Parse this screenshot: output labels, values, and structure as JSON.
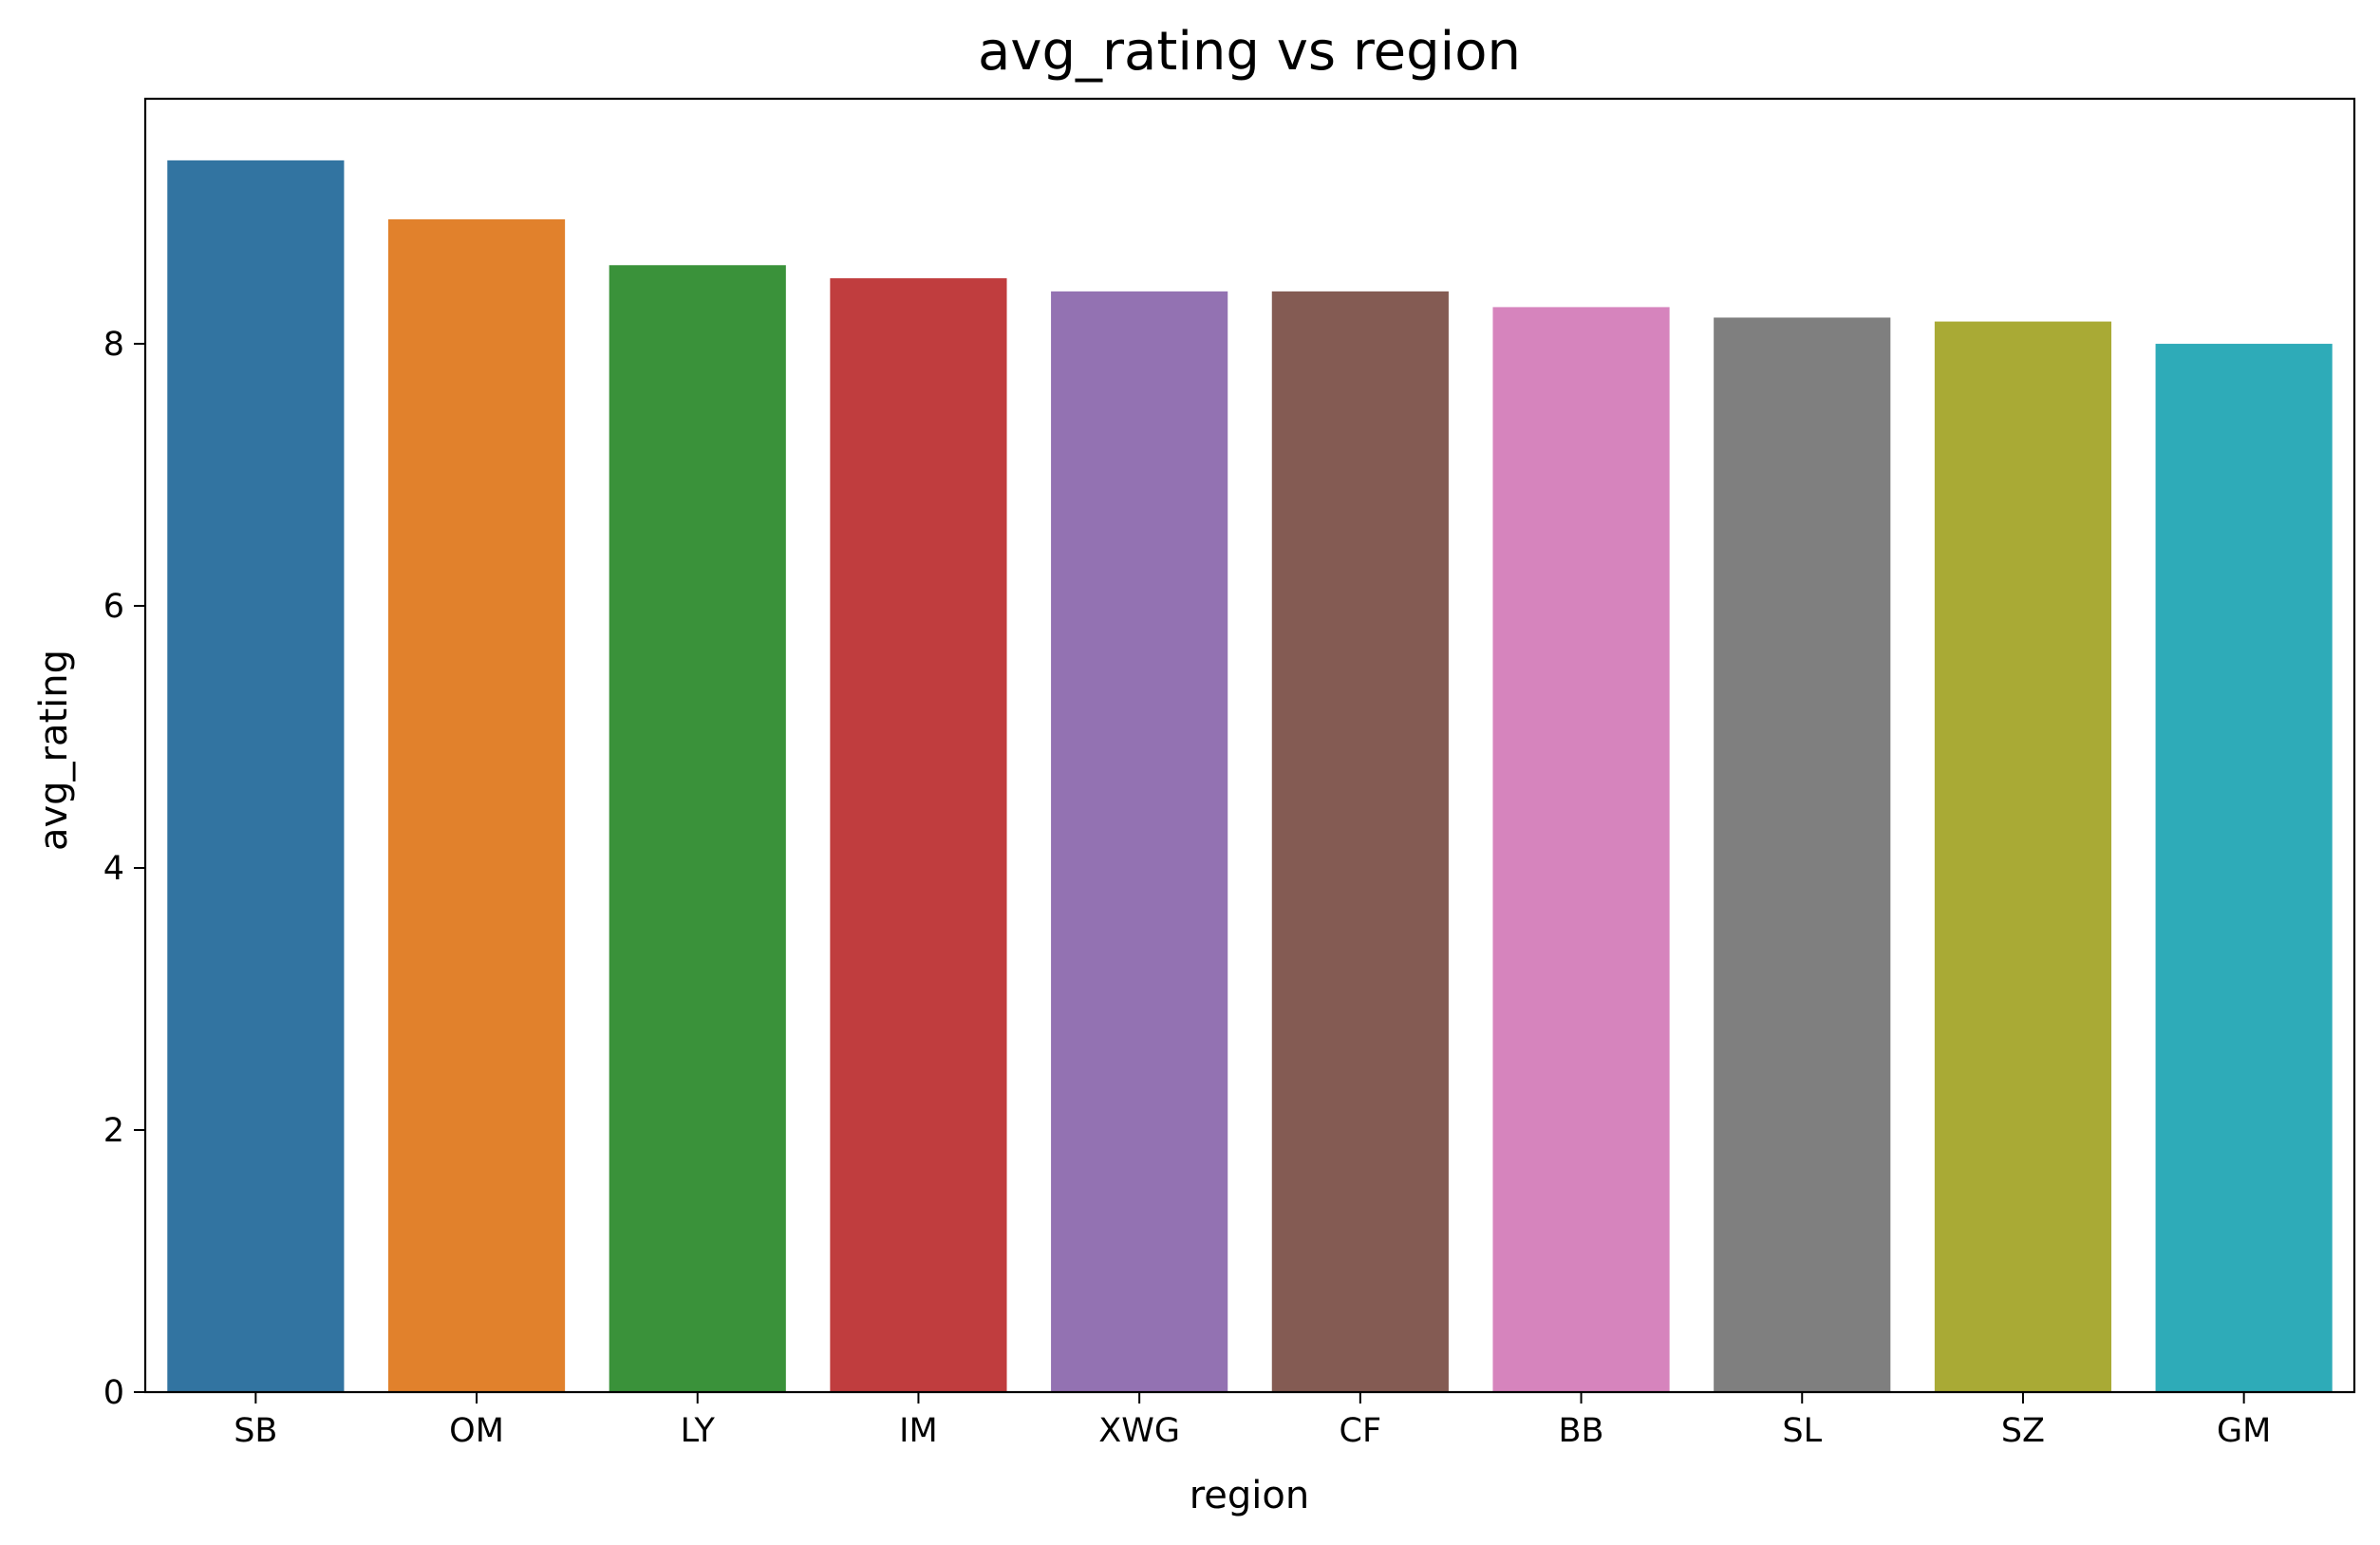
{
  "chart_data": {
    "type": "bar",
    "title": "avg_rating vs region",
    "xlabel": "region",
    "ylabel": "avg_rating",
    "categories": [
      "SB",
      "OM",
      "LY",
      "IM",
      "XWG",
      "CF",
      "BB",
      "SL",
      "SZ",
      "GM"
    ],
    "values": [
      9.4,
      8.95,
      8.6,
      8.5,
      8.4,
      8.4,
      8.28,
      8.2,
      8.17,
      8.0
    ],
    "colors": [
      "#3274a1",
      "#e1812c",
      "#3a923a",
      "#c03d3e",
      "#9372b2",
      "#845b53",
      "#d684bd",
      "#7f7f7f",
      "#a9aa35",
      "#2eabb8"
    ],
    "yticks": [
      0,
      2,
      4,
      6,
      8
    ],
    "ylim": [
      0,
      9.87
    ],
    "grid": false,
    "legend": "none"
  }
}
